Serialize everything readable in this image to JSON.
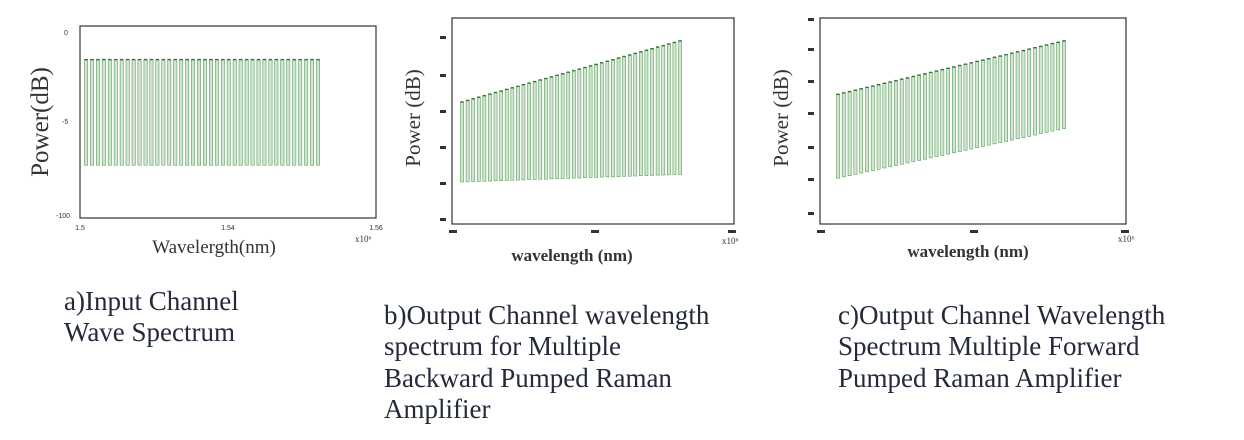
{
  "chart_data": [
    {
      "type": "bar",
      "ylabel": "Power(dB)",
      "xlabel": "Wavelergth(nm)",
      "xexponent": "x10⁶",
      "y_tick_labels": [
        "0",
        "-5",
        "-100"
      ],
      "x_tick_labels": [
        "1.5",
        "1.54",
        "1.56"
      ],
      "channels": 40,
      "series": [
        {
          "values": {
            "start": -3.5,
            "end": -3.5
          }
        },
        {
          "values": {
            "start": -14.5,
            "end": -14.5
          }
        }
      ],
      "caption": [
        "a)Input Channel",
        "Wave Spectrum"
      ]
    },
    {
      "type": "bar",
      "ylabel": "Power (dB)",
      "xlabel": "wavelength (nm)",
      "xexponent": "x10⁶",
      "y_tick_labels": [
        "",
        "",
        "",
        "",
        "",
        ""
      ],
      "x_tick_labels": [
        "",
        "",
        ""
      ],
      "channels": 40,
      "series": [
        {
          "values": {
            "start": 1,
            "end": 9
          }
        },
        {
          "values": {
            "start": -9.5,
            "end": -8.5
          }
        }
      ],
      "caption": [
        "b)Output Channel wavelength",
        "spectrum for Multiple",
        "Backward Pumped Raman",
        "Amplifier"
      ]
    },
    {
      "type": "bar",
      "ylabel": "Power (dB)",
      "xlabel": "wavelength (nm)",
      "xexponent": "x10⁶",
      "y_tick_labels": [
        "",
        "",
        "",
        "",
        "",
        "",
        "",
        ""
      ],
      "x_tick_labels": [
        "",
        "",
        ""
      ],
      "channels": 40,
      "series": [
        {
          "values": {
            "start": 2,
            "end": 9
          }
        },
        {
          "values": {
            "start": -9,
            "end": -2.5
          }
        }
      ],
      "caption": [
        "c)Output Channel Wavelength",
        "Spectrum Multiple Forward",
        "Pumped Raman Amplifier"
      ]
    }
  ],
  "colors": {
    "bar_fill": "#cfe6cf",
    "bar_line": "#5f9e5f",
    "peak": "#2f6f2f",
    "axis": "#333333",
    "text": "#232a3a"
  }
}
